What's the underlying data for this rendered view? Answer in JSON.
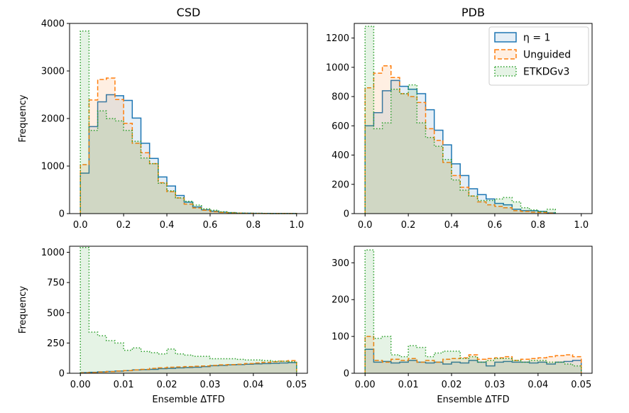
{
  "chart_data": [
    {
      "type": "histogram",
      "title": "CSD",
      "xlabel": "",
      "ylabel": "Frequency",
      "xlim": [
        -0.05,
        1.05
      ],
      "ylim": [
        0,
        4000
      ],
      "xticks": [
        0.0,
        0.2,
        0.4,
        0.6,
        0.8,
        1.0
      ],
      "xtick_labels": [
        "0.0",
        "0.2",
        "0.4",
        "0.6",
        "0.8",
        "1.0"
      ],
      "yticks": [
        0,
        1000,
        2000,
        3000,
        4000
      ],
      "ytick_labels": [
        "0",
        "1000",
        "2000",
        "3000",
        "4000"
      ],
      "bin_edges": [
        0.0,
        0.04,
        0.08,
        0.12,
        0.16,
        0.2,
        0.24,
        0.28,
        0.32,
        0.36,
        0.4,
        0.44,
        0.48,
        0.52,
        0.56,
        0.6,
        0.64,
        0.68,
        0.72,
        0.76,
        0.8,
        0.84,
        0.88,
        0.92,
        0.96,
        1.0
      ],
      "series": [
        {
          "key": "eta",
          "values": [
            850,
            1830,
            2350,
            2500,
            2480,
            2380,
            2010,
            1480,
            1160,
            770,
            580,
            380,
            240,
            140,
            80,
            50,
            30,
            20,
            10,
            8,
            5,
            3,
            2,
            1,
            1
          ]
        },
        {
          "key": "unguided",
          "values": [
            1030,
            2390,
            2820,
            2850,
            2400,
            1900,
            1480,
            1280,
            1050,
            650,
            460,
            330,
            200,
            120,
            70,
            40,
            25,
            15,
            10,
            6,
            4,
            2,
            2,
            1,
            1
          ]
        },
        {
          "key": "etkdg",
          "values": [
            3840,
            1750,
            2160,
            2000,
            1950,
            1750,
            1520,
            1170,
            1050,
            640,
            480,
            330,
            260,
            180,
            100,
            70,
            40,
            20,
            12,
            8,
            5,
            3,
            2,
            1,
            1
          ]
        }
      ]
    },
    {
      "type": "histogram",
      "title": "PDB",
      "xlabel": "",
      "ylabel": "",
      "xlim": [
        -0.05,
        1.05
      ],
      "ylim": [
        0,
        1300
      ],
      "xticks": [
        0.0,
        0.2,
        0.4,
        0.6,
        0.8,
        1.0
      ],
      "xtick_labels": [
        "0.0",
        "0.2",
        "0.4",
        "0.6",
        "0.8",
        "1.0"
      ],
      "yticks": [
        0,
        200,
        400,
        600,
        800,
        1000,
        1200
      ],
      "ytick_labels": [
        "0",
        "200",
        "400",
        "600",
        "800",
        "1000",
        "1200"
      ],
      "bin_edges": [
        0.0,
        0.04,
        0.08,
        0.12,
        0.16,
        0.2,
        0.24,
        0.28,
        0.32,
        0.36,
        0.4,
        0.44,
        0.48,
        0.52,
        0.56,
        0.6,
        0.64,
        0.68,
        0.72,
        0.76,
        0.8,
        0.84,
        0.88
      ],
      "series": [
        {
          "key": "eta",
          "values": [
            600,
            690,
            840,
            910,
            870,
            850,
            820,
            710,
            570,
            470,
            340,
            260,
            170,
            130,
            100,
            70,
            60,
            30,
            20,
            20,
            15,
            5
          ]
        },
        {
          "key": "unguided",
          "values": [
            860,
            960,
            1010,
            930,
            820,
            800,
            760,
            580,
            500,
            350,
            260,
            180,
            120,
            80,
            60,
            50,
            40,
            20,
            15,
            10,
            8,
            3
          ]
        },
        {
          "key": "etkdg",
          "values": [
            1280,
            580,
            620,
            850,
            820,
            880,
            620,
            520,
            460,
            370,
            230,
            160,
            120,
            90,
            90,
            100,
            110,
            80,
            40,
            25,
            15,
            30
          ]
        }
      ]
    },
    {
      "type": "histogram",
      "title": "",
      "xlabel": "Ensemble ΔTFD",
      "ylabel": "Frequency",
      "xlim": [
        -0.0025,
        0.0525
      ],
      "ylim": [
        0,
        1050
      ],
      "xticks": [
        0.0,
        0.01,
        0.02,
        0.03,
        0.04,
        0.05
      ],
      "xtick_labels": [
        "0.00",
        "0.01",
        "0.02",
        "0.03",
        "0.04",
        "0.05"
      ],
      "yticks": [
        0,
        250,
        500,
        750,
        1000
      ],
      "ytick_labels": [
        "0",
        "250",
        "500",
        "750",
        "1000"
      ],
      "bin_edges": [
        0.0,
        0.002,
        0.004,
        0.006,
        0.008,
        0.01,
        0.012,
        0.014,
        0.016,
        0.018,
        0.02,
        0.022,
        0.024,
        0.026,
        0.028,
        0.03,
        0.032,
        0.034,
        0.036,
        0.038,
        0.04,
        0.042,
        0.044,
        0.046,
        0.048,
        0.05
      ],
      "series": [
        {
          "key": "eta",
          "values": [
            5,
            8,
            12,
            15,
            18,
            22,
            28,
            30,
            32,
            38,
            40,
            45,
            48,
            50,
            55,
            62,
            65,
            70,
            72,
            75,
            78,
            80,
            82,
            85,
            88
          ]
        },
        {
          "key": "unguided",
          "values": [
            4,
            6,
            10,
            14,
            18,
            22,
            28,
            32,
            40,
            45,
            50,
            52,
            55,
            58,
            60,
            65,
            70,
            72,
            75,
            80,
            85,
            90,
            95,
            100,
            105
          ]
        },
        {
          "key": "etkdg",
          "values": [
            1040,
            340,
            310,
            270,
            250,
            190,
            210,
            180,
            170,
            160,
            200,
            160,
            150,
            140,
            140,
            120,
            120,
            120,
            115,
            110,
            110,
            105,
            100,
            100,
            95
          ]
        }
      ]
    },
    {
      "type": "histogram",
      "title": "",
      "xlabel": "Ensemble ΔTFD",
      "ylabel": "",
      "xlim": [
        -0.0025,
        0.0525
      ],
      "ylim": [
        0,
        345
      ],
      "xticks": [
        0.0,
        0.01,
        0.02,
        0.03,
        0.04,
        0.05
      ],
      "xtick_labels": [
        "0.00",
        "0.01",
        "0.02",
        "0.03",
        "0.04",
        "0.05"
      ],
      "yticks": [
        0,
        100,
        200,
        300
      ],
      "ytick_labels": [
        "0",
        "100",
        "200",
        "300"
      ],
      "bin_edges": [
        0.0,
        0.002,
        0.004,
        0.006,
        0.008,
        0.01,
        0.012,
        0.014,
        0.016,
        0.018,
        0.02,
        0.022,
        0.024,
        0.026,
        0.028,
        0.03,
        0.032,
        0.034,
        0.036,
        0.038,
        0.04,
        0.042,
        0.044,
        0.046,
        0.048,
        0.05
      ],
      "series": [
        {
          "key": "eta",
          "values": [
            65,
            30,
            32,
            28,
            30,
            35,
            30,
            28,
            30,
            25,
            30,
            28,
            35,
            30,
            20,
            30,
            32,
            30,
            30,
            28,
            30,
            25,
            30,
            32,
            35
          ]
        },
        {
          "key": "unguided",
          "values": [
            100,
            35,
            30,
            38,
            35,
            40,
            30,
            35,
            30,
            38,
            40,
            42,
            50,
            38,
            40,
            42,
            45,
            35,
            38,
            40,
            42,
            45,
            48,
            50,
            45
          ]
        },
        {
          "key": "etkdg",
          "values": [
            335,
            95,
            100,
            50,
            45,
            75,
            70,
            45,
            55,
            60,
            60,
            40,
            45,
            30,
            35,
            40,
            40,
            35,
            30,
            35,
            35,
            30,
            30,
            25,
            20
          ]
        }
      ]
    }
  ],
  "legend": {
    "location": "top-right of PDB panel",
    "items": [
      {
        "key": "eta",
        "label": "η = 1",
        "color": "#1f77b4",
        "fill": "#1f77b4",
        "fill_opacity": 0.12,
        "dash": "solid"
      },
      {
        "key": "unguided",
        "label": "Unguided",
        "color": "#ff7f0e",
        "fill": "#ff7f0e",
        "fill_opacity": 0.12,
        "dash": "dashed"
      },
      {
        "key": "etkdg",
        "label": "ETKDGv3",
        "color": "#2ca02c",
        "fill": "#2ca02c",
        "fill_opacity": 0.12,
        "dash": "dotted"
      }
    ]
  }
}
